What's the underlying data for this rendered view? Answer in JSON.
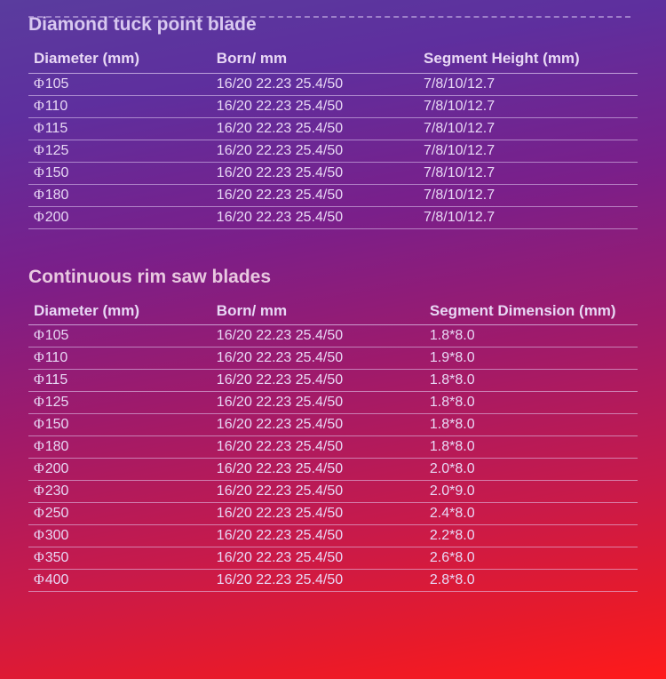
{
  "tables": [
    {
      "title": "Diamond tuck point blade",
      "headers": {
        "diameter": "Diameter (mm)",
        "born": "Born/ mm",
        "segment": "Segment Height  (mm)"
      },
      "phi": "Φ",
      "rows": [
        {
          "d": "105",
          "b": "16/20 22.23 25.4/50",
          "s": "7/8/10/12.7"
        },
        {
          "d": "110",
          "b": "16/20 22.23 25.4/50",
          "s": "7/8/10/12.7"
        },
        {
          "d": "115",
          "b": "16/20 22.23 25.4/50",
          "s": "7/8/10/12.7"
        },
        {
          "d": "125",
          "b": "16/20 22.23 25.4/50",
          "s": "7/8/10/12.7"
        },
        {
          "d": "150",
          "b": "16/20 22.23 25.4/50",
          "s": "7/8/10/12.7"
        },
        {
          "d": "180",
          "b": "16/20 22.23 25.4/50",
          "s": "7/8/10/12.7"
        },
        {
          "d": "200",
          "b": "16/20 22.23 25.4/50",
          "s": "7/8/10/12.7"
        }
      ]
    },
    {
      "title": "Continuous rim saw blades",
      "headers": {
        "diameter": "Diameter (mm)",
        "born": "Born/ mm",
        "segment": "Segment Dimension  (mm)"
      },
      "phi": "Φ",
      "rows": [
        {
          "d": "105",
          "b": "16/20 22.23 25.4/50",
          "s": "1.8*8.0"
        },
        {
          "d": "110",
          "b": "16/20 22.23 25.4/50",
          "s": "1.9*8.0"
        },
        {
          "d": "115",
          "b": "16/20 22.23 25.4/50",
          "s": "1.8*8.0"
        },
        {
          "d": "125",
          "b": "16/20 22.23 25.4/50",
          "s": "1.8*8.0"
        },
        {
          "d": "150",
          "b": "16/20 22.23 25.4/50",
          "s": "1.8*8.0"
        },
        {
          "d": "180",
          "b": "16/20 22.23 25.4/50",
          "s": "1.8*8.0"
        },
        {
          "d": "200",
          "b": "16/20 22.23 25.4/50",
          "s": "2.0*8.0"
        },
        {
          "d": "230",
          "b": "16/20 22.23 25.4/50",
          "s": "2.0*9.0"
        },
        {
          "d": "250",
          "b": "16/20 22.23 25.4/50",
          "s": "2.4*8.0"
        },
        {
          "d": "300",
          "b": "16/20 22.23 25.4/50",
          "s": "2.2*8.0"
        },
        {
          "d": "350",
          "b": "16/20 22.23 25.4/50",
          "s": "2.6*8.0"
        },
        {
          "d": "400",
          "b": "16/20 22.23 25.4/50",
          "s": "2.8*8.0"
        }
      ]
    }
  ]
}
